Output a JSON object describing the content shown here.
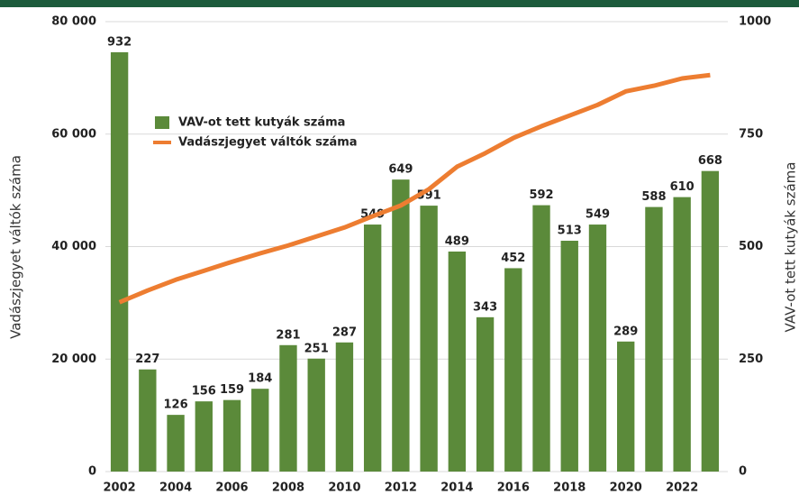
{
  "chart_data": {
    "type": "bar-line",
    "categories": [
      "2002",
      null,
      "2004",
      null,
      "2006",
      null,
      "2008",
      null,
      "2010",
      null,
      "2012",
      null,
      "2014",
      null,
      "2016",
      null,
      "2018",
      null,
      "2020",
      null,
      "2022",
      null
    ],
    "series": [
      {
        "name": "VAV-ot tett kutyák száma",
        "color": "#5b8a3a",
        "axis": "y2",
        "type": "bar",
        "values": [
          932,
          227,
          126,
          156,
          159,
          184,
          281,
          251,
          287,
          549,
          649,
          591,
          489,
          343,
          452,
          592,
          513,
          549,
          289,
          588,
          610,
          668
        ]
      },
      {
        "name": "Vadászjegyet váltók száma",
        "color": "#ed7d31",
        "axis": "y",
        "type": "line",
        "values": [
          30100,
          32200,
          34100,
          35700,
          37300,
          38800,
          40200,
          41800,
          43400,
          45400,
          47300,
          50200,
          54200,
          56600,
          59300,
          61400,
          63300,
          65200,
          67600,
          68600,
          69900,
          70500
        ]
      }
    ],
    "ylabel": "Vadászjegyet váltók száma",
    "y2label": "VAV-ot tett kutyák száma",
    "ylim": [
      0,
      80000
    ],
    "yticks": [
      {
        "value": 0,
        "label": "0"
      },
      {
        "value": 20000,
        "label": "20 000"
      },
      {
        "value": 40000,
        "label": "40 000"
      },
      {
        "value": 60000,
        "label": "60 000"
      },
      {
        "value": 80000,
        "label": "80 000"
      }
    ],
    "y2lim": [
      0,
      1000
    ],
    "y2ticks": [
      0,
      250,
      500,
      750,
      1000
    ],
    "grid": true,
    "legend": "upper left"
  }
}
